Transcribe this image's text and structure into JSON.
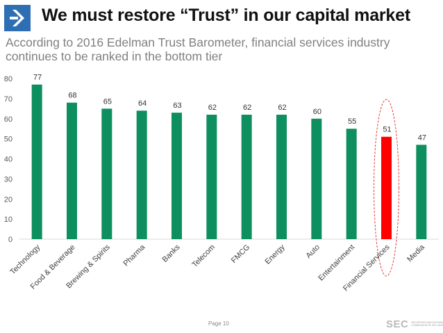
{
  "slide": {
    "title": "We must restore “Trust” in our capital market",
    "subtitle": "According to 2016 Edelman Trust Barometer, financial services industry continues to be ranked in the bottom tier",
    "page_label": "Page 10",
    "sec_logo_text": "SEC",
    "sec_logo_subtext": "SECURITIES AND EXCHANGE COMMISSION OF SRI LANKA",
    "logo_icon": "chevron-right-icon",
    "colors": {
      "logo": "#2e6fb3",
      "bar": "#0e8f5f",
      "highlight": "#ff0000",
      "highlight_outline": "#e53935"
    }
  },
  "chart_data": {
    "type": "bar",
    "categories": [
      "Technology",
      "Food & Beverage",
      "Brewing & Spirits",
      "Pharma",
      "Banks",
      "Telecom",
      "FMCG",
      "Energy",
      "Auto",
      "Entertainment",
      "Financial Services",
      "Media"
    ],
    "values": [
      77,
      68,
      65,
      64,
      63,
      62,
      62,
      62,
      60,
      55,
      51,
      47
    ],
    "highlight_category": "Financial Services",
    "ylim": [
      0,
      80
    ],
    "yticks": [
      0,
      10,
      20,
      30,
      40,
      50,
      60,
      70,
      80
    ],
    "grid": false,
    "data_labels": true,
    "xlabel": "",
    "ylabel": ""
  }
}
